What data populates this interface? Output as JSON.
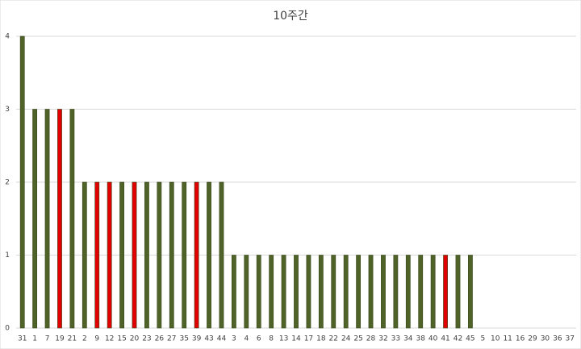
{
  "chart_data": {
    "type": "bar",
    "title": "10주간",
    "categories": [
      "31",
      "1",
      "7",
      "19",
      "21",
      "2",
      "9",
      "12",
      "15",
      "20",
      "23",
      "26",
      "27",
      "35",
      "39",
      "43",
      "44",
      "3",
      "4",
      "6",
      "8",
      "13",
      "14",
      "17",
      "18",
      "22",
      "24",
      "25",
      "28",
      "32",
      "33",
      "34",
      "38",
      "40",
      "41",
      "42",
      "45",
      "5",
      "10",
      "11",
      "16",
      "29",
      "30",
      "36",
      "37"
    ],
    "values": [
      4,
      3,
      3,
      3,
      3,
      2,
      2,
      2,
      2,
      2,
      2,
      2,
      2,
      2,
      2,
      2,
      2,
      1,
      1,
      1,
      1,
      1,
      1,
      1,
      1,
      1,
      1,
      1,
      1,
      1,
      1,
      1,
      1,
      1,
      1,
      1,
      1,
      0,
      0,
      0,
      0,
      0,
      0,
      0,
      0
    ],
    "colors": [
      "#4f6228",
      "#4f6228",
      "#4f6228",
      "#e00000",
      "#4f6228",
      "#4f6228",
      "#e00000",
      "#e00000",
      "#4f6228",
      "#e00000",
      "#4f6228",
      "#4f6228",
      "#4f6228",
      "#4f6228",
      "#e00000",
      "#4f6228",
      "#4f6228",
      "#4f6228",
      "#4f6228",
      "#4f6228",
      "#4f6228",
      "#4f6228",
      "#4f6228",
      "#4f6228",
      "#4f6228",
      "#4f6228",
      "#4f6228",
      "#4f6228",
      "#4f6228",
      "#4f6228",
      "#4f6228",
      "#4f6228",
      "#4f6228",
      "#4f6228",
      "#e00000",
      "#4f6228",
      "#4f6228",
      "#4f6228",
      "#4f6228",
      "#4f6228",
      "#4f6228",
      "#4f6228",
      "#4f6228",
      "#4f6228",
      "#4f6228"
    ],
    "ylim": [
      0,
      4
    ],
    "yticks": [
      0,
      1,
      2,
      3,
      4
    ],
    "grid": true
  }
}
